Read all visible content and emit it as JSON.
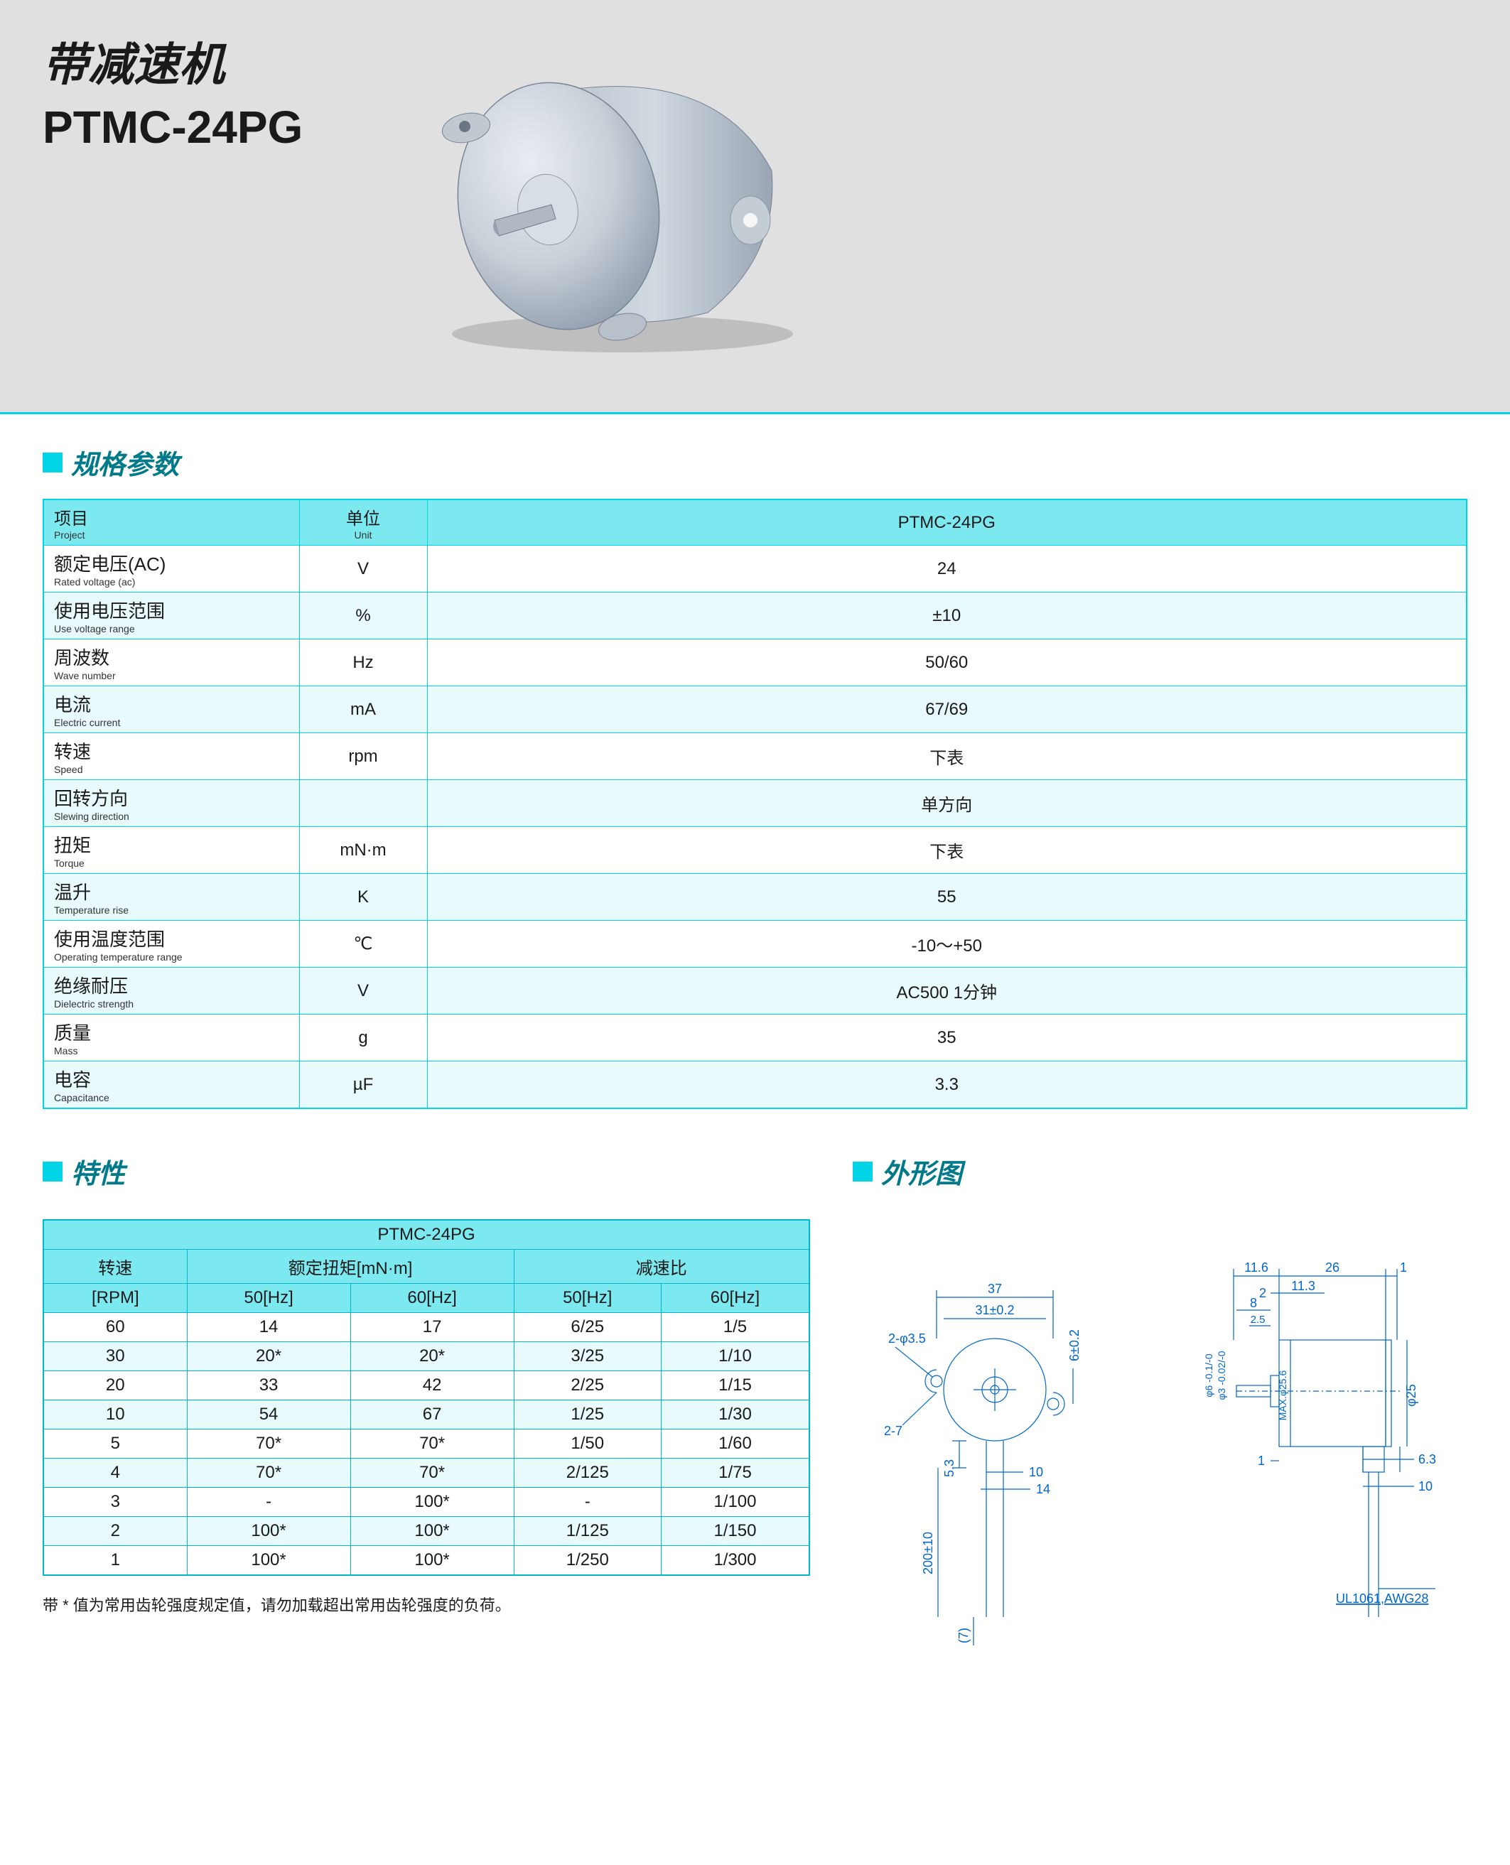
{
  "header": {
    "title_cn": "带减速机",
    "title_model": "PTMC-24PG"
  },
  "colors": {
    "accent": "#00d4e6",
    "header_bg": "#7ce8ef",
    "row_even": "#e8fafc",
    "section_title": "#007a8a",
    "drawing_line": "#0066cc",
    "motor_body": "#c8d0d8",
    "motor_shadow": "#8896a8",
    "page_header_bg": "#e0e0e0"
  },
  "section_spec_title": "规格参数",
  "section_char_title": "特性",
  "section_drawing_title": "外形图",
  "spec_table": {
    "headers": {
      "project_cn": "项目",
      "project_en": "Project",
      "unit_cn": "单位",
      "unit_en": "Unit",
      "model": "PTMC-24PG"
    },
    "rows": [
      {
        "cn": "额定电压(AC)",
        "en": "Rated voltage (ac)",
        "unit": "V",
        "val": "24"
      },
      {
        "cn": "使用电压范围",
        "en": "Use voltage range",
        "unit": "%",
        "val": "±10"
      },
      {
        "cn": "周波数",
        "en": "Wave number",
        "unit": "Hz",
        "val": "50/60"
      },
      {
        "cn": "电流",
        "en": "Electric current",
        "unit": "mA",
        "val": "67/69"
      },
      {
        "cn": "转速",
        "en": "Speed",
        "unit": "rpm",
        "val": "下表"
      },
      {
        "cn": "回转方向",
        "en": "Slewing direction",
        "unit": "",
        "val": "单方向"
      },
      {
        "cn": "扭矩",
        "en": "Torque",
        "unit": "mN·m",
        "val": "下表"
      },
      {
        "cn": "温升",
        "en": "Temperature rise",
        "unit": "K",
        "val": "55"
      },
      {
        "cn": "使用温度范围",
        "en": "Operating temperature range",
        "unit": "℃",
        "val": "-10～+50"
      },
      {
        "cn": "绝缘耐压",
        "en": "Dielectric strength",
        "unit": "V",
        "val": "AC500  1分钟"
      },
      {
        "cn": "质量",
        "en": "Mass",
        "unit": "g",
        "val": "35"
      },
      {
        "cn": "电容",
        "en": "Capacitance",
        "unit": "µF",
        "val": "3.3"
      }
    ]
  },
  "char_table": {
    "title": "PTMC-24PG",
    "h_speed": "转速",
    "h_torque": "额定扭矩[mN·m]",
    "h_ratio": "减速比",
    "sub_rpm": "[RPM]",
    "sub_50": "50[Hz]",
    "sub_60": "60[Hz]",
    "rows": [
      {
        "rpm": "60",
        "t50": "14",
        "t60": "17",
        "r50": "6/25",
        "r60": "1/5"
      },
      {
        "rpm": "30",
        "t50": "20*",
        "t60": "20*",
        "r50": "3/25",
        "r60": "1/10"
      },
      {
        "rpm": "20",
        "t50": "33",
        "t60": "42",
        "r50": "2/25",
        "r60": "1/15"
      },
      {
        "rpm": "10",
        "t50": "54",
        "t60": "67",
        "r50": "1/25",
        "r60": "1/30"
      },
      {
        "rpm": "5",
        "t50": "70*",
        "t60": "70*",
        "r50": "1/50",
        "r60": "1/60"
      },
      {
        "rpm": "4",
        "t50": "70*",
        "t60": "70*",
        "r50": "2/125",
        "r60": "1/75"
      },
      {
        "rpm": "3",
        "t50": "-",
        "t60": "100*",
        "r50": "-",
        "r60": "1/100"
      },
      {
        "rpm": "2",
        "t50": "100*",
        "t60": "100*",
        "r50": "1/125",
        "r60": "1/150"
      },
      {
        "rpm": "1",
        "t50": "100*",
        "t60": "100*",
        "r50": "1/250",
        "r60": "1/300"
      }
    ]
  },
  "footnote": "带 * 值为常用齿轮强度规定值，请勿加载超出常用齿轮强度的负荷。",
  "drawing": {
    "top": {
      "d37": "37",
      "d31": "31±0.2",
      "d2_35": "2-φ3.5",
      "d2_7": "2-7",
      "d5_3": "5.3",
      "d10": "10",
      "d14": "14",
      "d200": "200±10",
      "d_paren7": "(7)",
      "d6_02": "6±0.2"
    },
    "side": {
      "d11_6": "11.6",
      "d26": "26",
      "d1r": "1",
      "d2": "2",
      "d11_3": "11.3",
      "d8": "8",
      "d_phi6": "φ6 -0.1/-0",
      "d_phi3": "φ3 -0.02/-0",
      "d2_5": "2.5",
      "d_max": "MAX.φ25.6",
      "d_phi25": "φ25",
      "d1": "1",
      "d6_3": "6.3",
      "d10b": "10",
      "wire": "UL1061,AWG28"
    }
  }
}
